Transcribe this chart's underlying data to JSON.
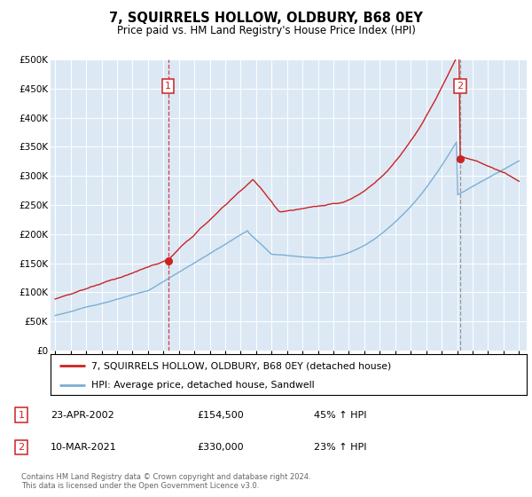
{
  "title": "7, SQUIRRELS HOLLOW, OLDBURY, B68 0EY",
  "subtitle": "Price paid vs. HM Land Registry's House Price Index (HPI)",
  "legend_line1": "7, SQUIRRELS HOLLOW, OLDBURY, B68 0EY (detached house)",
  "legend_line2": "HPI: Average price, detached house, Sandwell",
  "footnote1": "Contains HM Land Registry data © Crown copyright and database right 2024.",
  "footnote2": "This data is licensed under the Open Government Licence v3.0.",
  "marker1_label": "1",
  "marker1_date": "23-APR-2002",
  "marker1_price": "£154,500",
  "marker1_hpi": "45% ↑ HPI",
  "marker2_label": "2",
  "marker2_date": "10-MAR-2021",
  "marker2_price": "£330,000",
  "marker2_hpi": "23% ↑ HPI",
  "red_color": "#cc2222",
  "blue_color": "#7bafd4",
  "bg_color": "#dce9f5",
  "grid_color": "#c8d8e8",
  "marker1_x": 2002.31,
  "marker2_x": 2021.19,
  "marker1_y": 154500,
  "marker2_y": 330000,
  "ylim": [
    0,
    500000
  ],
  "xlim": [
    1994.7,
    2025.5
  ],
  "yticks": [
    0,
    50000,
    100000,
    150000,
    200000,
    250000,
    300000,
    350000,
    400000,
    450000,
    500000
  ]
}
